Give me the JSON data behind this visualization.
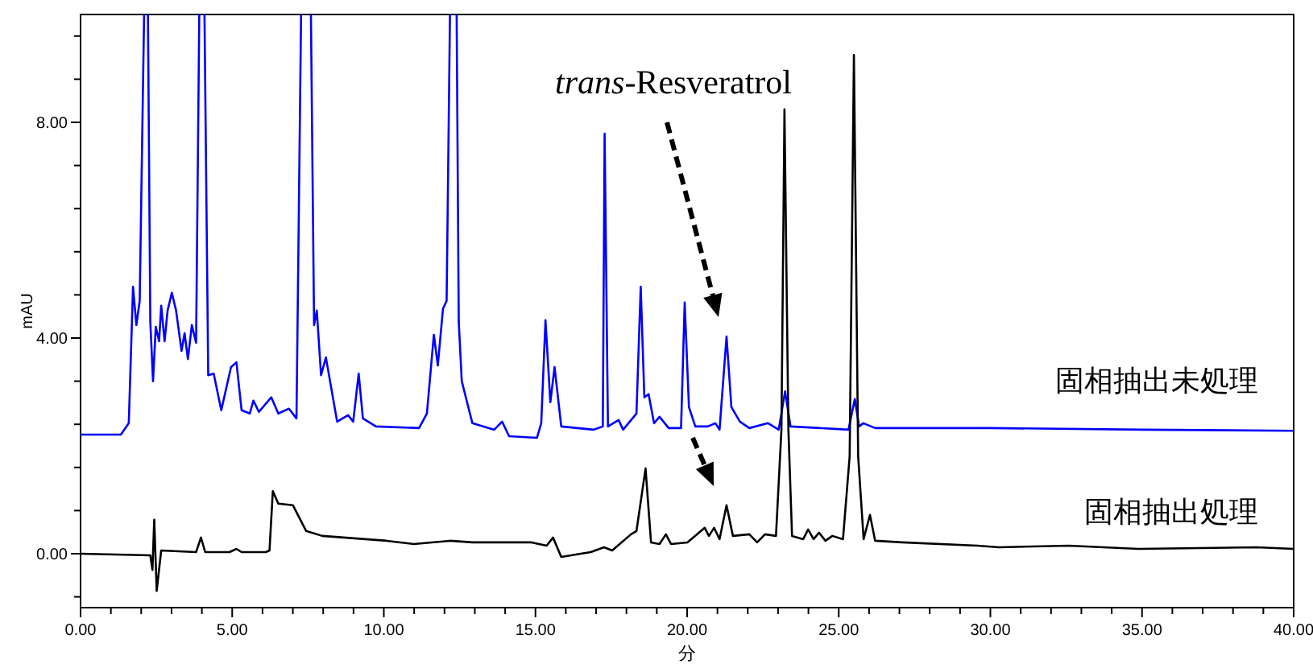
{
  "chart_data": {
    "type": "line",
    "xlabel": "分",
    "ylabel": "mAU",
    "xlim": [
      0,
      40
    ],
    "ylim": [
      -1,
      10
    ],
    "xticks": [
      {
        "value": 0,
        "label": "0.00"
      },
      {
        "value": 1,
        "label": null
      },
      {
        "value": 2,
        "label": null
      },
      {
        "value": 3,
        "label": null
      },
      {
        "value": 4,
        "label": null
      },
      {
        "value": 5,
        "label": "5.00"
      },
      {
        "value": 6,
        "label": null
      },
      {
        "value": 7,
        "label": null
      },
      {
        "value": 8,
        "label": null
      },
      {
        "value": 9,
        "label": null
      },
      {
        "value": 10,
        "label": "10.00"
      },
      {
        "value": 11,
        "label": null
      },
      {
        "value": 12,
        "label": null
      },
      {
        "value": 13,
        "label": null
      },
      {
        "value": 14,
        "label": null
      },
      {
        "value": 15,
        "label": "15.00"
      },
      {
        "value": 16,
        "label": null
      },
      {
        "value": 17,
        "label": null
      },
      {
        "value": 18,
        "label": null
      },
      {
        "value": 19,
        "label": null
      },
      {
        "value": 20,
        "label": "20.00"
      },
      {
        "value": 21,
        "label": null
      },
      {
        "value": 22,
        "label": null
      },
      {
        "value": 23,
        "label": null
      },
      {
        "value": 24,
        "label": null
      },
      {
        "value": 25,
        "label": "25.00"
      },
      {
        "value": 26,
        "label": null
      },
      {
        "value": 27,
        "label": null
      },
      {
        "value": 28,
        "label": null
      },
      {
        "value": 29,
        "label": null
      },
      {
        "value": 30,
        "label": "30.00"
      },
      {
        "value": 31,
        "label": null
      },
      {
        "value": 32,
        "label": null
      },
      {
        "value": 33,
        "label": null
      },
      {
        "value": 34,
        "label": null
      },
      {
        "value": 35,
        "label": "35.00"
      },
      {
        "value": 36,
        "label": null
      },
      {
        "value": 37,
        "label": null
      },
      {
        "value": 38,
        "label": null
      },
      {
        "value": 39,
        "label": null
      },
      {
        "value": 40,
        "label": "40.00"
      }
    ],
    "yticks": [
      {
        "value": -0.8,
        "label": null
      },
      {
        "value": 0,
        "label": "0.00"
      },
      {
        "value": 0.8,
        "label": null
      },
      {
        "value": 1.6,
        "label": null
      },
      {
        "value": 2.4,
        "label": null
      },
      {
        "value": 3.2,
        "label": null
      },
      {
        "value": 4,
        "label": "4.00"
      },
      {
        "value": 4.8,
        "label": null
      },
      {
        "value": 5.6,
        "label": null
      },
      {
        "value": 6.4,
        "label": null
      },
      {
        "value": 7.2,
        "label": null
      },
      {
        "value": 8,
        "label": "8.00"
      },
      {
        "value": 8.8,
        "label": null
      },
      {
        "value": 9.6,
        "label": null
      }
    ],
    "legend": false,
    "annotations": [
      "*trans*-Resveratrol"
    ],
    "series": [
      {
        "name": "固相抽出未処理",
        "color": "#0000ff",
        "x": [
          0,
          1.33,
          1.59,
          1.73,
          1.84,
          1.95,
          2.12,
          2.21,
          2.3,
          2.39,
          2.48,
          2.59,
          2.66,
          2.77,
          2.87,
          3.01,
          3.15,
          3.33,
          3.43,
          3.54,
          3.67,
          3.81,
          3.93,
          4.07,
          4.21,
          4.39,
          4.64,
          4.96,
          5.14,
          5.31,
          5.58,
          5.7,
          5.88,
          6.29,
          6.52,
          6.87,
          7.12,
          7.29,
          7.58,
          7.7,
          7.79,
          7.93,
          8.09,
          8.46,
          8.82,
          8.99,
          9.17,
          9.31,
          9.74,
          11.16,
          11.42,
          11.65,
          11.78,
          11.95,
          12.07,
          12.2,
          12.39,
          12.47,
          12.57,
          12.92,
          13.64,
          13.9,
          14.13,
          15.05,
          15.19,
          15.33,
          15.49,
          15.63,
          15.85,
          16.91,
          17.22,
          17.28,
          17.39,
          17.74,
          17.89,
          18.33,
          18.47,
          18.59,
          18.73,
          18.91,
          19.09,
          19.39,
          19.8,
          19.92,
          20.06,
          20.27,
          20.68,
          20.93,
          21.07,
          21.3,
          21.46,
          21.74,
          22.05,
          22.67,
          23.02,
          23.23,
          23.41,
          25.32,
          25.53,
          25.67,
          25.81,
          26.2,
          30,
          35,
          40
        ],
        "values": [
          2.21,
          2.21,
          2.42,
          4.95,
          4.24,
          4.69,
          null,
          null,
          4.3,
          3.2,
          4.21,
          3.94,
          4.6,
          3.94,
          4.51,
          4.84,
          4.51,
          3.76,
          4.09,
          3.61,
          4.24,
          3.91,
          null,
          null,
          3.31,
          3.34,
          2.66,
          3.46,
          3.55,
          2.66,
          2.6,
          2.84,
          2.63,
          2.9,
          2.6,
          2.69,
          2.51,
          null,
          null,
          4.24,
          4.51,
          3.31,
          3.64,
          2.45,
          2.57,
          2.45,
          3.34,
          2.51,
          2.36,
          2.33,
          2.6,
          4.06,
          3.49,
          4.54,
          4.69,
          null,
          null,
          4.3,
          3.2,
          2.42,
          2.3,
          2.45,
          2.18,
          2.15,
          2.42,
          4.33,
          2.81,
          3.46,
          2.36,
          2.3,
          2.36,
          7.79,
          2.36,
          2.48,
          2.3,
          2.6,
          4.95,
          2.9,
          2.96,
          2.42,
          2.54,
          2.33,
          2.33,
          4.66,
          2.72,
          2.36,
          2.36,
          2.42,
          2.3,
          4.03,
          2.72,
          2.45,
          2.33,
          2.42,
          2.3,
          3.01,
          2.36,
          2.3,
          2.87,
          2.36,
          2.42,
          2.33,
          2.33,
          2.3,
          2.28
        ]
      },
      {
        "name": "固相抽出処理",
        "color": "#000000",
        "x": [
          0,
          2.3,
          2.37,
          2.43,
          2.51,
          2.66,
          3.81,
          3.97,
          4.11,
          4.91,
          5.14,
          5.31,
          6.11,
          6.23,
          6.34,
          6.52,
          7,
          7.44,
          7.97,
          10.09,
          10.98,
          12.18,
          12.92,
          14.87,
          15.37,
          15.58,
          15.85,
          16.82,
          17.26,
          17.53,
          18.15,
          18.33,
          18.63,
          18.81,
          19.09,
          19.3,
          19.47,
          20.01,
          20.58,
          20.72,
          20.89,
          21.07,
          21.3,
          21.51,
          22.05,
          22.31,
          22.57,
          22.93,
          23.11,
          23.21,
          23.34,
          23.46,
          23.83,
          23.99,
          24.17,
          24.35,
          24.56,
          24.79,
          25.14,
          25.36,
          25.5,
          25.64,
          25.82,
          26.03,
          26.2,
          27.09,
          29.57,
          30.28,
          32.58,
          34.88,
          38.78,
          40
        ],
        "values": [
          0,
          -0.03,
          -0.3,
          0.63,
          -0.69,
          0.06,
          0.03,
          0.3,
          0.03,
          0.03,
          0.09,
          0.03,
          0.03,
          0.06,
          1.16,
          0.93,
          0.9,
          0.42,
          0.33,
          0.24,
          0.18,
          0.24,
          0.21,
          0.21,
          0.15,
          0.3,
          -0.06,
          0.03,
          0.12,
          0.06,
          0.36,
          0.42,
          1.58,
          0.21,
          0.18,
          0.36,
          0.18,
          0.21,
          0.48,
          0.33,
          0.48,
          0.27,
          0.9,
          0.33,
          0.36,
          0.21,
          0.36,
          0.33,
          2.3,
          8.24,
          2.3,
          0.33,
          0.27,
          0.45,
          0.27,
          0.39,
          0.24,
          0.33,
          0.27,
          1.81,
          9.25,
          1.81,
          0.27,
          0.72,
          0.24,
          0.21,
          0.15,
          0.12,
          0.15,
          0.09,
          0.12,
          0.09
        ]
      }
    ]
  }
}
